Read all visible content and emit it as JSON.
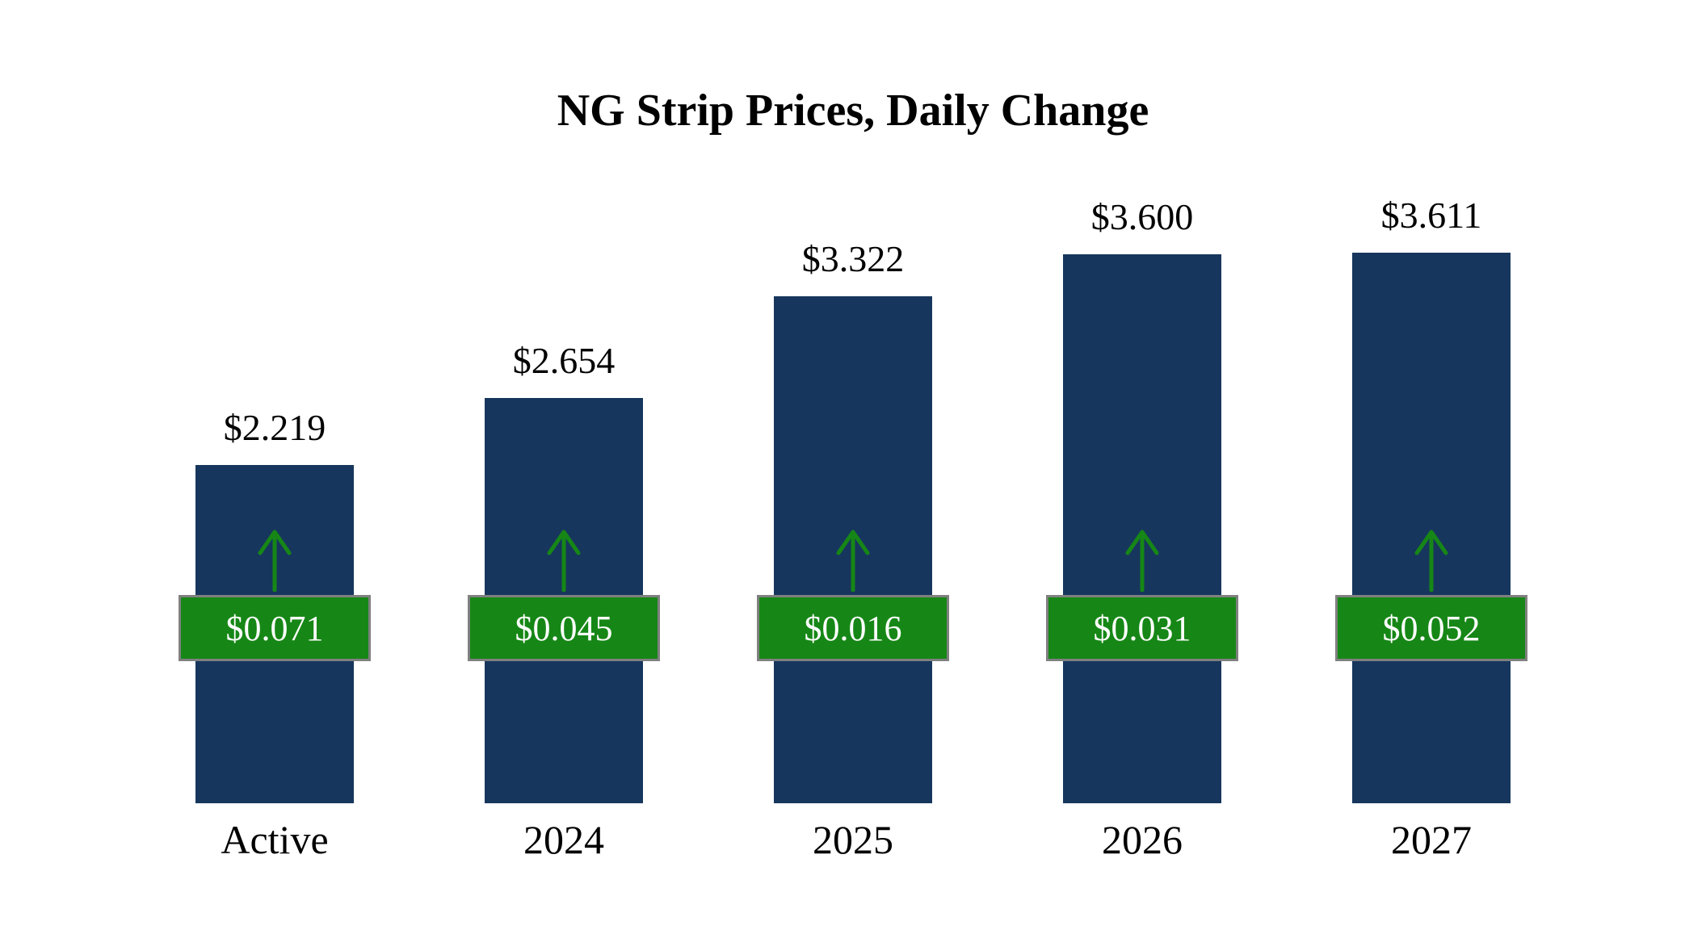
{
  "chart_data": {
    "type": "bar",
    "title": "NG Strip Prices, Daily Change",
    "categories": [
      "Active",
      "2024",
      "2025",
      "2026",
      "2027"
    ],
    "series": [
      {
        "name": "Strip Price",
        "values": [
          2.219,
          2.654,
          3.322,
          3.6,
          3.611
        ],
        "labels": [
          "$2.219",
          "$2.654",
          "$3.322",
          "$3.600",
          "$3.611"
        ]
      },
      {
        "name": "Daily Change",
        "values": [
          0.071,
          0.045,
          0.016,
          0.031,
          0.052
        ],
        "labels": [
          "$0.071",
          "$0.045",
          "$0.016",
          "$0.031",
          "$0.052"
        ]
      }
    ],
    "xlabel": "",
    "ylabel": "",
    "ylim": [
      0,
      3.8
    ],
    "grid": false,
    "legend": "none",
    "colors": {
      "bar": "#17365D",
      "change_badge": "#168716",
      "badge_border": "#808080",
      "badge_text": "#FFFFFF",
      "arrow": "#168716",
      "text": "#000000"
    }
  }
}
